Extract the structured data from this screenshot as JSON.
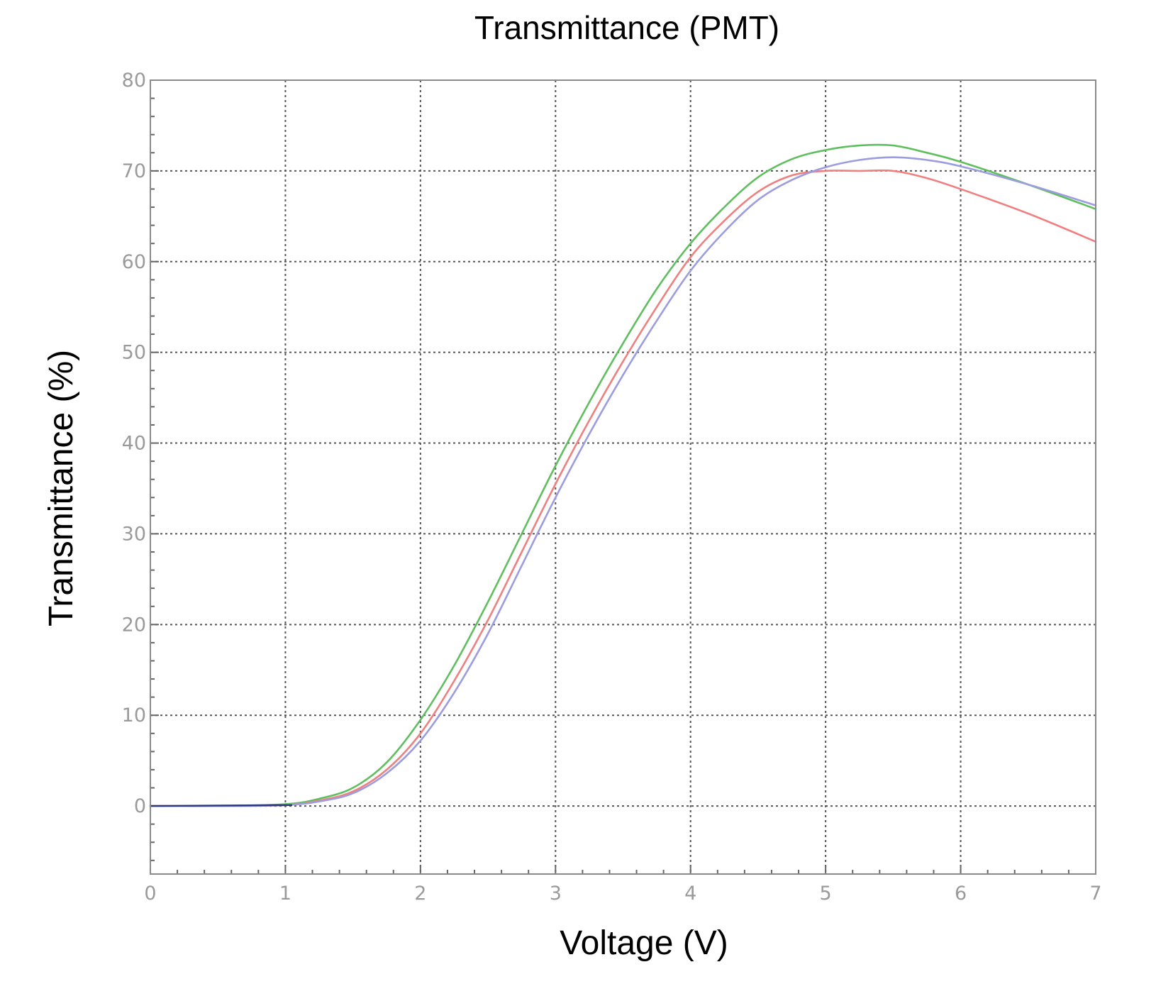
{
  "chart_data": {
    "type": "line",
    "title": "Transmittance (PMT)",
    "xlabel": "Voltage (V)",
    "ylabel": "Transmittance (%)",
    "xlim": [
      0,
      7
    ],
    "ylim": [
      -7.5,
      80
    ],
    "x_ticks": [
      "0",
      "1",
      "2",
      "3",
      "4",
      "5",
      "6",
      "7"
    ],
    "y_ticks": [
      "0",
      "10",
      "20",
      "30",
      "40",
      "50",
      "60",
      "70",
      "80"
    ],
    "grid": true,
    "x": [
      0,
      0.5,
      1.0,
      1.25,
      1.5,
      1.75,
      2.0,
      2.25,
      2.5,
      2.75,
      3.0,
      3.25,
      3.5,
      3.75,
      4.0,
      4.25,
      4.5,
      4.75,
      5.0,
      5.25,
      5.5,
      5.75,
      6.0,
      6.5,
      7.0
    ],
    "series": [
      {
        "color": "#5fbf5f",
        "values": [
          0,
          0,
          0.2,
          0.8,
          2.0,
          4.8,
          9.5,
          15.5,
          22.5,
          30.0,
          37.5,
          44.5,
          51.0,
          57.0,
          62.0,
          66.0,
          69.3,
          71.3,
          72.3,
          72.8,
          72.8,
          72.0,
          71.0,
          68.5,
          65.8
        ]
      },
      {
        "color": "#f08080",
        "values": [
          0,
          0,
          0.1,
          0.6,
          1.6,
          4.0,
          8.0,
          13.8,
          20.5,
          28.0,
          35.5,
          42.5,
          49.0,
          55.0,
          60.5,
          64.5,
          67.7,
          69.5,
          70.0,
          70.0,
          70.0,
          69.2,
          68.0,
          65.3,
          62.2
        ]
      },
      {
        "color": "#9c9ce0",
        "values": [
          0,
          0,
          0.1,
          0.5,
          1.4,
          3.6,
          7.2,
          12.5,
          19.0,
          26.5,
          34.0,
          41.0,
          47.5,
          53.5,
          59.0,
          63.3,
          66.8,
          69.0,
          70.4,
          71.2,
          71.5,
          71.2,
          70.5,
          68.5,
          66.2
        ]
      }
    ]
  }
}
